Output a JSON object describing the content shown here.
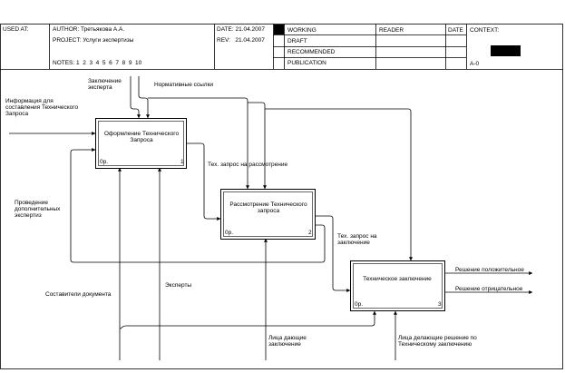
{
  "header": {
    "used_at_label": "USED AT:",
    "author": "AUTHOR: Третьякова А.А.",
    "project": "PROJECT: Услуги экспертизы",
    "notes": "NOTES: 1  2  3  4  5  6  7  8  9  10",
    "date": "DATE: 21.04.2007",
    "rev": "REV:   21.04.2007",
    "status_working": "WORKING",
    "status_draft": "DRAFT",
    "status_recommended": "RECOMMENDED",
    "status_publication": "PUBLICATION",
    "reader_label": "READER",
    "reader_date_label": "DATE",
    "context_label": "CONTEXT:",
    "node_ref": "A-0"
  },
  "boxes": [
    {
      "id": "box1",
      "title": "Оформление Технического Запроса",
      "cost": "0р.",
      "number": "1"
    },
    {
      "id": "box2",
      "title": "Рассмотрение Технического запроса",
      "cost": "0р.",
      "number": "2"
    },
    {
      "id": "box3",
      "title": "Техническое заключение",
      "cost": "0р.",
      "number": "3"
    }
  ],
  "arrows": {
    "input_info": "Информация для составления Технического Запроса",
    "control_expert_opinion": "Заключение эксперта",
    "control_normative": "Нормативные ссылки",
    "tz_for_review": "Тех. запрос на рассмотрение",
    "tz_for_conclusion": "Тех. запрос на заключение",
    "extra_expertise": "Проведение дополнительных экспертиз",
    "mech_authors": "Составители документа",
    "mech_experts": "Эксперты",
    "mech_conclusion_givers": "Лица дающие заключение",
    "mech_decision_makers": "Лица делающие решение по Техническому заключению",
    "out_positive": "Решение положительное",
    "out_negative": "Решение отрицательное"
  }
}
